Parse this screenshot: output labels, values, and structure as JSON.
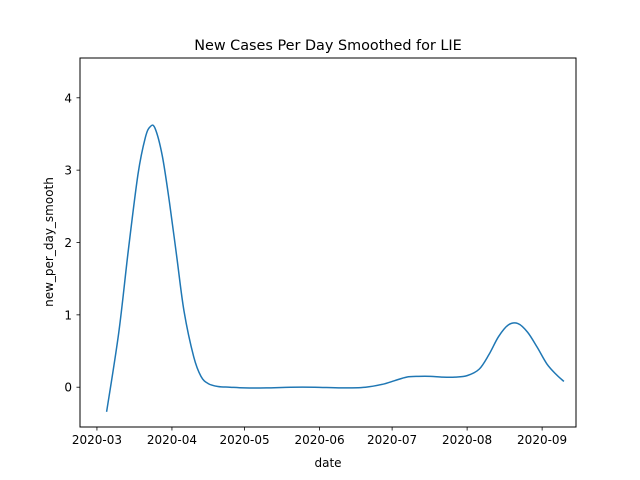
{
  "chart_data": {
    "type": "line",
    "title": "New Cases Per Day Smoothed for LIE",
    "xlabel": "date",
    "ylabel": "new_per_day_smooth",
    "x_ticks": [
      "2020-03",
      "2020-04",
      "2020-05",
      "2020-06",
      "2020-07",
      "2020-08",
      "2020-09"
    ],
    "y_ticks": [
      "0",
      "1",
      "2",
      "3",
      "4"
    ],
    "xlim": [
      "2020-02-23",
      "2020-09-15"
    ],
    "ylim": [
      -0.55,
      4.55
    ],
    "grid": false,
    "line_color": "#1f77b4",
    "series": [
      {
        "x": [
          "2020-03-05",
          "2020-03-10",
          "2020-03-14",
          "2020-03-18",
          "2020-03-21",
          "2020-03-23",
          "2020-03-25",
          "2020-03-28",
          "2020-03-31",
          "2020-04-03",
          "2020-04-06",
          "2020-04-10",
          "2020-04-13",
          "2020-04-16",
          "2020-04-20",
          "2020-04-25",
          "2020-05-01",
          "2020-05-10",
          "2020-05-20",
          "2020-05-30",
          "2020-06-10",
          "2020-06-20",
          "2020-06-27",
          "2020-07-02",
          "2020-07-07",
          "2020-07-12",
          "2020-07-17",
          "2020-07-22",
          "2020-07-27",
          "2020-08-01",
          "2020-08-06",
          "2020-08-10",
          "2020-08-14",
          "2020-08-18",
          "2020-08-22",
          "2020-08-26",
          "2020-08-30",
          "2020-09-03",
          "2020-09-07",
          "2020-09-10"
        ],
        "y": [
          -0.34,
          0.75,
          1.9,
          2.95,
          3.45,
          3.6,
          3.58,
          3.2,
          2.55,
          1.8,
          1.05,
          0.42,
          0.15,
          0.05,
          0.01,
          0.0,
          -0.01,
          -0.01,
          0.0,
          0.0,
          -0.01,
          0.0,
          0.04,
          0.09,
          0.14,
          0.15,
          0.15,
          0.14,
          0.14,
          0.16,
          0.25,
          0.45,
          0.7,
          0.86,
          0.88,
          0.76,
          0.55,
          0.32,
          0.17,
          0.08
        ]
      }
    ]
  }
}
